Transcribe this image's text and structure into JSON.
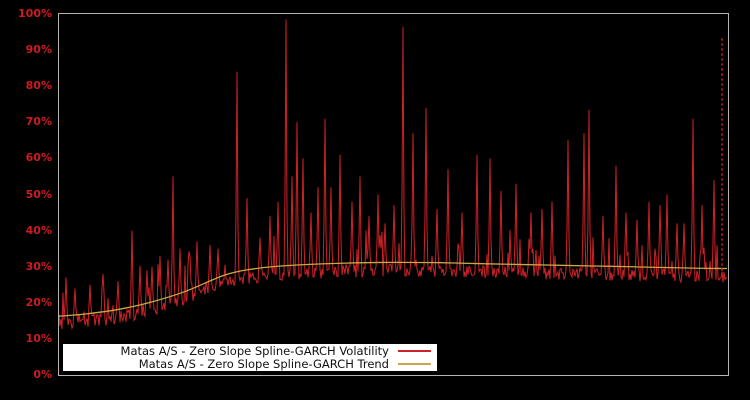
{
  "chart_data": {
    "type": "line",
    "title": "",
    "xlabel": "",
    "ylabel": "",
    "ylim": [
      0,
      100
    ],
    "grid": false,
    "legend_position": "bottom-left-inside",
    "background": "black",
    "y_ticks": [
      {
        "value": 0,
        "label": "0%"
      },
      {
        "value": 10,
        "label": "10%"
      },
      {
        "value": 20,
        "label": "20%"
      },
      {
        "value": 30,
        "label": "30%"
      },
      {
        "value": 40,
        "label": "40%"
      },
      {
        "value": 50,
        "label": "50%"
      },
      {
        "value": 60,
        "label": "60%"
      },
      {
        "value": 70,
        "label": "70%"
      },
      {
        "value": 80,
        "label": "80%"
      },
      {
        "value": 90,
        "label": "90%"
      },
      {
        "value": 100,
        "label": "100%"
      }
    ],
    "series": [
      {
        "name": "Matas A/S - Zero Slope Spline-GARCH Volatility",
        "color": "#cf2127",
        "style": "spiky-daily-volatility"
      },
      {
        "name": "Matas A/S - Zero Slope Spline-GARCH Trend",
        "color": "#c9a845",
        "style": "smooth-trend"
      }
    ],
    "trend_points": [
      {
        "x": 0.0,
        "y": 16.3
      },
      {
        "x": 0.04,
        "y": 16.9
      },
      {
        "x": 0.09,
        "y": 18.2
      },
      {
        "x": 0.14,
        "y": 20.3
      },
      {
        "x": 0.19,
        "y": 23.2
      },
      {
        "x": 0.25,
        "y": 27.8
      },
      {
        "x": 0.3,
        "y": 29.6
      },
      {
        "x": 0.36,
        "y": 30.5
      },
      {
        "x": 0.43,
        "y": 31.0
      },
      {
        "x": 0.5,
        "y": 31.2
      },
      {
        "x": 0.57,
        "y": 31.1
      },
      {
        "x": 0.64,
        "y": 30.8
      },
      {
        "x": 0.72,
        "y": 30.5
      },
      {
        "x": 0.8,
        "y": 30.2
      },
      {
        "x": 0.88,
        "y": 29.9
      },
      {
        "x": 0.95,
        "y": 29.6
      },
      {
        "x": 1.0,
        "y": 29.5
      }
    ],
    "major_spikes": [
      {
        "x": 0.0105,
        "y": 27
      },
      {
        "x": 0.0239,
        "y": 24
      },
      {
        "x": 0.0463,
        "y": 25
      },
      {
        "x": 0.0658,
        "y": 28
      },
      {
        "x": 0.0882,
        "y": 26
      },
      {
        "x": 0.1091,
        "y": 40
      },
      {
        "x": 0.1211,
        "y": 30
      },
      {
        "x": 0.1315,
        "y": 29
      },
      {
        "x": 0.139,
        "y": 30
      },
      {
        "x": 0.151,
        "y": 33
      },
      {
        "x": 0.1629,
        "y": 32
      },
      {
        "x": 0.1704,
        "y": 55
      },
      {
        "x": 0.1809,
        "y": 35
      },
      {
        "x": 0.1958,
        "y": 33
      },
      {
        "x": 0.2063,
        "y": 37
      },
      {
        "x": 0.2257,
        "y": 36
      },
      {
        "x": 0.2377,
        "y": 35
      },
      {
        "x": 0.2661,
        "y": 84
      },
      {
        "x": 0.281,
        "y": 49
      },
      {
        "x": 0.3004,
        "y": 38
      },
      {
        "x": 0.3154,
        "y": 44
      },
      {
        "x": 0.3273,
        "y": 48
      },
      {
        "x": 0.3393,
        "y": 98.5
      },
      {
        "x": 0.3483,
        "y": 55
      },
      {
        "x": 0.3557,
        "y": 70
      },
      {
        "x": 0.3647,
        "y": 60
      },
      {
        "x": 0.3767,
        "y": 45
      },
      {
        "x": 0.3871,
        "y": 52
      },
      {
        "x": 0.3976,
        "y": 71
      },
      {
        "x": 0.4066,
        "y": 52
      },
      {
        "x": 0.42,
        "y": 61
      },
      {
        "x": 0.4379,
        "y": 48
      },
      {
        "x": 0.4499,
        "y": 55
      },
      {
        "x": 0.4648,
        "y": 44
      },
      {
        "x": 0.4768,
        "y": 50
      },
      {
        "x": 0.4873,
        "y": 42
      },
      {
        "x": 0.5022,
        "y": 47
      },
      {
        "x": 0.5157,
        "y": 96.5
      },
      {
        "x": 0.5306,
        "y": 67
      },
      {
        "x": 0.5501,
        "y": 74
      },
      {
        "x": 0.5665,
        "y": 46
      },
      {
        "x": 0.583,
        "y": 57
      },
      {
        "x": 0.6039,
        "y": 45
      },
      {
        "x": 0.6264,
        "y": 61
      },
      {
        "x": 0.6458,
        "y": 60
      },
      {
        "x": 0.6622,
        "y": 51
      },
      {
        "x": 0.6846,
        "y": 53
      },
      {
        "x": 0.7071,
        "y": 45
      },
      {
        "x": 0.7235,
        "y": 46
      },
      {
        "x": 0.7384,
        "y": 48
      },
      {
        "x": 0.7623,
        "y": 65
      },
      {
        "x": 0.7862,
        "y": 67
      },
      {
        "x": 0.7937,
        "y": 73.5
      },
      {
        "x": 0.8146,
        "y": 44
      },
      {
        "x": 0.8341,
        "y": 58
      },
      {
        "x": 0.849,
        "y": 45
      },
      {
        "x": 0.8655,
        "y": 43
      },
      {
        "x": 0.8834,
        "y": 48
      },
      {
        "x": 0.8998,
        "y": 47
      },
      {
        "x": 0.9103,
        "y": 50
      },
      {
        "x": 0.9252,
        "y": 42
      },
      {
        "x": 0.9357,
        "y": 42
      },
      {
        "x": 0.9492,
        "y": 71
      },
      {
        "x": 0.9626,
        "y": 47
      },
      {
        "x": 0.9806,
        "y": 54
      }
    ],
    "final_spike": {
      "x": 0.9925,
      "y": 93.5,
      "dashed": true
    },
    "noise": {
      "seed": 20130628,
      "base_offset": -2.3,
      "jitter": 1.7,
      "minor_spike_prob": 0.22,
      "minor_spike_scale": 4.2,
      "max_below_trend": 5.5
    }
  },
  "legend": {
    "items": [
      {
        "label": "Matas A/S - Zero Slope Spline-GARCH Volatility",
        "color": "#cf2127"
      },
      {
        "label": "Matas A/S - Zero Slope Spline-GARCH Trend",
        "color": "#c9a845"
      }
    ]
  },
  "colors": {
    "background": "#000000",
    "plot_border": "#b4b4b4",
    "y_label": "#cc1c22",
    "volatility_line": "#cf2127",
    "trend_line": "#c9a845"
  }
}
